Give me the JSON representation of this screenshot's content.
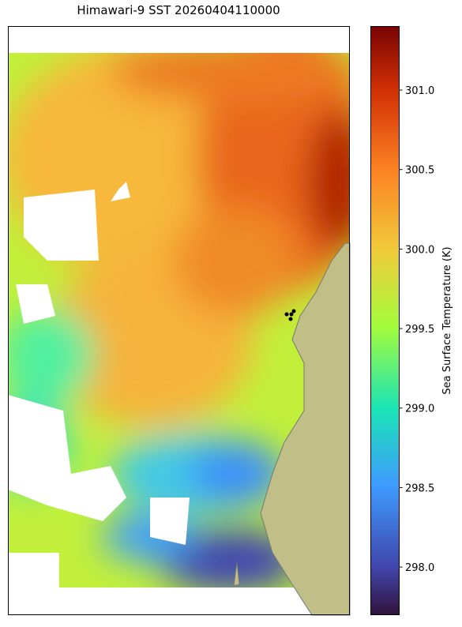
{
  "title": "Himawari-9 SST 20260404110000",
  "colorbar": {
    "label": "Sea Surface Temperature (K)",
    "lim": [
      297.7,
      301.4
    ],
    "ticks": [
      {
        "value": 298,
        "label": "298.0"
      },
      {
        "value": 298.5,
        "label": "298.5"
      },
      {
        "value": 299,
        "label": "299.0"
      },
      {
        "value": 299.5,
        "label": "299.5"
      },
      {
        "value": 300,
        "label": "300.0"
      },
      {
        "value": 300.5,
        "label": "300.5"
      },
      {
        "value": 301,
        "label": "301.0"
      }
    ]
  }
}
